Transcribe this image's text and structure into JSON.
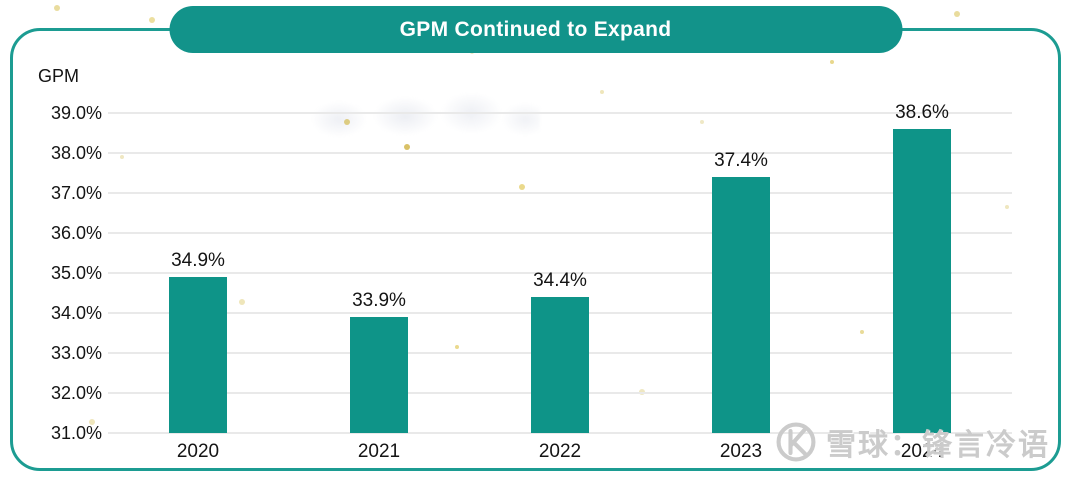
{
  "chart_data": {
    "type": "bar",
    "title": "GPM Continued to Expand",
    "ylabel": "GPM",
    "xlabel": "",
    "categories": [
      "2020",
      "2021",
      "2022",
      "2023",
      "2024"
    ],
    "values": [
      34.9,
      33.9,
      34.4,
      37.4,
      38.6
    ],
    "bar_labels": [
      "34.9%",
      "33.9%",
      "34.4%",
      "37.4%",
      "38.6%"
    ],
    "ylim": [
      31.0,
      39.0
    ],
    "ytick_step": 1.0,
    "ytick_labels": [
      "31.0%",
      "32.0%",
      "33.0%",
      "34.0%",
      "35.0%",
      "36.0%",
      "37.0%",
      "38.0%",
      "39.0%"
    ],
    "grid": true,
    "legend": "none",
    "bar_color": "#0e9488",
    "accent_color": "#12938a",
    "gridline_color": "#e9e9e9",
    "text_color": "#141414"
  },
  "watermark": {
    "text": "雪球：锋言冷语",
    "icon": "xueqiu-logo"
  }
}
